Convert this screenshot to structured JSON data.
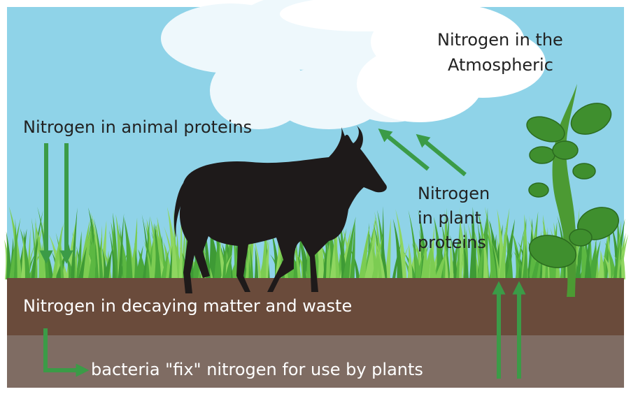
{
  "labels": {
    "atmosphere": [
      "Nitrogen in the",
      "Atmospheric"
    ],
    "animal_proteins": "Nitrogen in animal proteins",
    "plant_proteins": [
      "Nitrogen",
      "in plant",
      "proteins"
    ],
    "decaying_matter": "Nitrogen in decaying matter and waste",
    "bacteria": "bacteria \"fix\" nitrogen for use by plants"
  }
}
